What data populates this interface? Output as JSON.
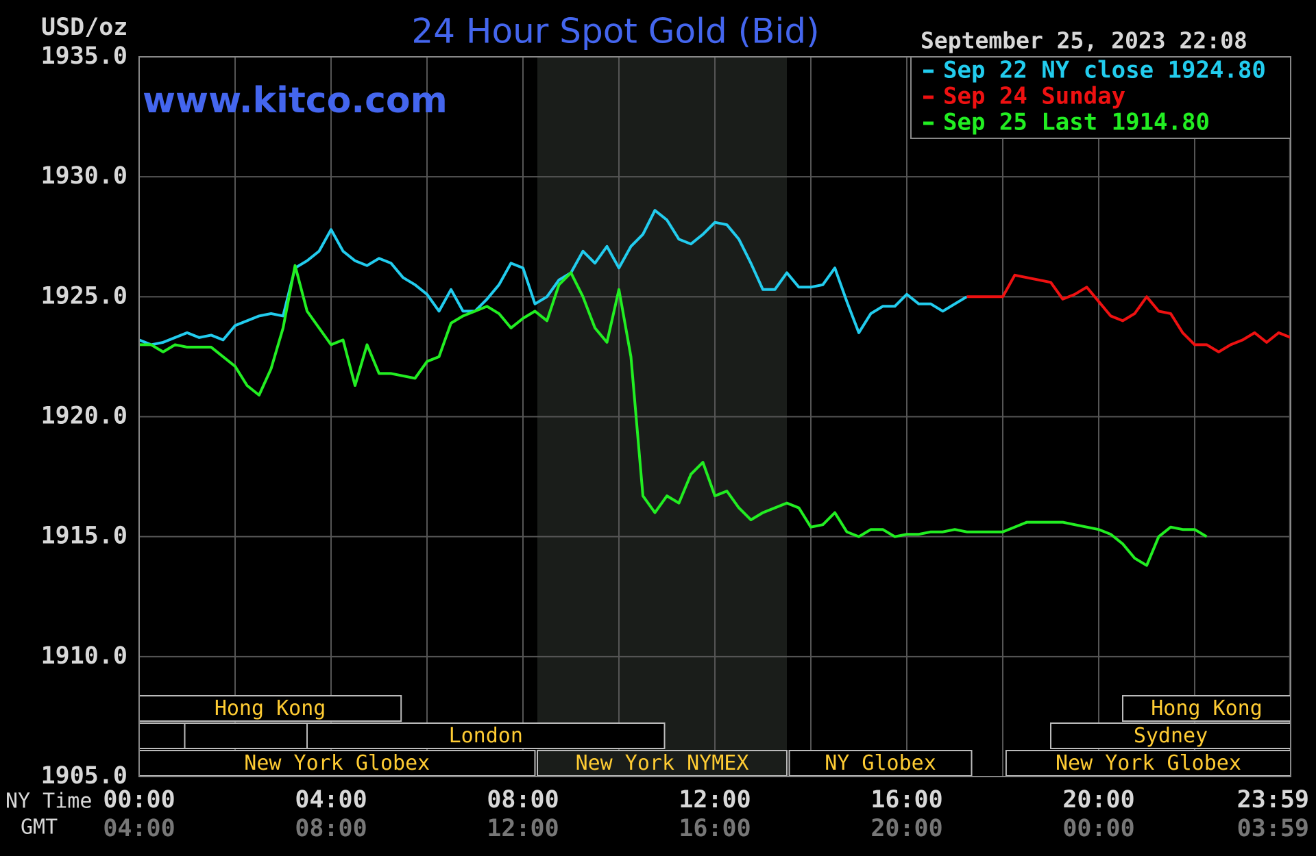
{
  "chart_data": {
    "type": "line",
    "title": "24 Hour Spot Gold (Bid)",
    "subtitle": "www.kitco.com",
    "timestamp": "September 25, 2023 22:08",
    "ylabel": "USD/oz",
    "xlabel": "NY Time",
    "x2label": "GMT",
    "x": [
      0,
      0.25,
      0.5,
      0.75,
      1,
      1.25,
      1.5,
      1.75,
      2,
      2.25,
      2.5,
      2.75,
      3,
      3.25,
      3.5,
      3.75,
      4,
      4.25,
      4.5,
      4.75,
      5,
      5.25,
      5.5,
      5.75,
      6,
      6.25,
      6.5,
      6.75,
      7,
      7.25,
      7.5,
      7.75,
      8,
      8.25,
      8.5,
      8.75,
      9,
      9.25,
      9.5,
      9.75,
      10,
      10.25,
      10.5,
      10.75,
      11,
      11.25,
      11.5,
      11.75,
      12,
      12.25,
      12.5,
      12.75,
      13,
      13.25,
      13.5,
      13.75,
      14,
      14.25,
      14.5,
      14.75,
      15,
      15.25,
      15.5,
      15.75,
      16,
      16.25,
      16.5,
      16.75,
      17,
      17.25,
      17.5,
      17.75,
      18,
      18.25,
      18.5,
      18.75,
      19,
      19.25,
      19.5,
      19.75,
      20,
      20.25,
      20.5,
      20.75,
      21,
      21.25,
      21.5,
      21.75,
      22,
      22.25,
      22.5,
      22.75,
      23,
      23.25,
      23.5,
      23.75,
      24
    ],
    "series": [
      {
        "name": "Sep 22 NY close 1924.80",
        "color": "#22ccee",
        "values": [
          1923.2,
          1923.0,
          1923.1,
          1923.3,
          1923.5,
          1923.3,
          1923.4,
          1923.2,
          1923.8,
          1924.0,
          1924.2,
          1924.3,
          1924.2,
          1926.2,
          1926.5,
          1926.9,
          1927.8,
          1926.9,
          1926.5,
          1926.3,
          1926.6,
          1926.4,
          1925.8,
          1925.5,
          1925.1,
          1924.4,
          1925.3,
          1924.4,
          1924.4,
          1924.9,
          1925.5,
          1926.4,
          1926.2,
          1924.7,
          1925.0,
          1925.7,
          1926.0,
          1926.9,
          1926.4,
          1927.1,
          1926.2,
          1927.1,
          1927.6,
          1928.6,
          1928.2,
          1927.4,
          1927.2,
          1927.6,
          1928.1,
          1928.0,
          1927.4,
          1926.4,
          1925.3,
          1925.3,
          1926.0,
          1925.4,
          1925.4,
          1925.5,
          1926.2,
          1924.8,
          1923.5,
          1924.3,
          1924.6,
          1924.6,
          1925.1,
          1924.7,
          1924.7,
          1924.4,
          1924.7,
          1925.0,
          null,
          null,
          null,
          null,
          null,
          null,
          null,
          null,
          null,
          null,
          null,
          null,
          null,
          null,
          null,
          null,
          null,
          null,
          null,
          null,
          null,
          null,
          null,
          null,
          null,
          null,
          null
        ]
      },
      {
        "name": "Sep 24 Sunday",
        "color": "#ee1111",
        "values": [
          null,
          null,
          null,
          null,
          null,
          null,
          null,
          null,
          null,
          null,
          null,
          null,
          null,
          null,
          null,
          null,
          null,
          null,
          null,
          null,
          null,
          null,
          null,
          null,
          null,
          null,
          null,
          null,
          null,
          null,
          null,
          null,
          null,
          null,
          null,
          null,
          null,
          null,
          null,
          null,
          null,
          null,
          null,
          null,
          null,
          null,
          null,
          null,
          null,
          null,
          null,
          null,
          null,
          null,
          null,
          null,
          null,
          null,
          null,
          null,
          null,
          null,
          null,
          null,
          null,
          null,
          null,
          null,
          null,
          1925.0,
          1925.0,
          1925.0,
          1925.0,
          1925.9,
          1925.8,
          1925.7,
          1925.6,
          1924.9,
          1925.1,
          1925.4,
          1924.8,
          1924.2,
          1924.0,
          1924.3,
          1925.0,
          1924.4,
          1924.3,
          1923.5,
          1923.0,
          1923.0,
          1922.7,
          1923.0,
          1923.2,
          1923.5,
          1923.1,
          1923.5,
          1923.3
        ]
      },
      {
        "name": "Sep 25 Last 1914.80",
        "color": "#22ee22",
        "values": [
          1923.0,
          1923.0,
          1922.7,
          1923.0,
          1922.9,
          1922.9,
          1922.9,
          1922.5,
          1922.1,
          1921.3,
          1920.9,
          1922.0,
          1923.7,
          1926.3,
          1924.4,
          1923.7,
          1923.0,
          1923.2,
          1921.3,
          1923.0,
          1921.8,
          1921.8,
          1921.7,
          1921.6,
          1922.3,
          1922.5,
          1923.9,
          1924.2,
          1924.4,
          1924.6,
          1924.3,
          1923.7,
          1924.1,
          1924.4,
          1924.0,
          1925.5,
          1926.0,
          1925.0,
          1923.7,
          1923.1,
          1925.3,
          1922.5,
          1916.7,
          1916.0,
          1916.7,
          1916.4,
          1917.6,
          1918.1,
          1916.7,
          1916.9,
          1916.2,
          1915.7,
          1916.0,
          1916.2,
          1916.4,
          1916.2,
          1915.4,
          1915.5,
          1916.0,
          1915.2,
          1915.0,
          1915.3,
          1915.3,
          1915.0,
          1915.1,
          1915.1,
          1915.2,
          1915.2,
          1915.3,
          1915.2,
          1915.2,
          1915.2,
          1915.2,
          1915.4,
          1915.6,
          1915.6,
          1915.6,
          1915.6,
          1915.5,
          1915.4,
          1915.3,
          1915.1,
          1914.7,
          1914.1,
          1913.8,
          1915.0,
          1915.4,
          1915.3,
          1915.3,
          1915.0,
          null,
          null,
          null,
          null,
          null,
          null,
          null
        ]
      }
    ],
    "xlim": [
      0,
      24
    ],
    "xticks": [
      {
        "value": 0,
        "label": "00:00"
      },
      {
        "value": 4,
        "label": "04:00"
      },
      {
        "value": 8,
        "label": "08:00"
      },
      {
        "value": 12,
        "label": "12:00"
      },
      {
        "value": 16,
        "label": "16:00"
      },
      {
        "value": 20,
        "label": "20:00"
      },
      {
        "value": 23.983,
        "label": "23:59"
      }
    ],
    "x2ticks": [
      {
        "value": 0,
        "label": "04:00"
      },
      {
        "value": 4,
        "label": "08:00"
      },
      {
        "value": 8,
        "label": "12:00"
      },
      {
        "value": 12,
        "label": "16:00"
      },
      {
        "value": 16,
        "label": "20:00"
      },
      {
        "value": 20,
        "label": "00:00"
      },
      {
        "value": 23.983,
        "label": "03:59"
      }
    ],
    "xminor": [
      2,
      6,
      10,
      14,
      18,
      22
    ],
    "ylim": [
      1905,
      1935
    ],
    "yticks": [
      {
        "value": 1905,
        "label": "1905.0"
      },
      {
        "value": 1910,
        "label": "1910.0"
      },
      {
        "value": 1915,
        "label": "1915.0"
      },
      {
        "value": 1920,
        "label": "1920.0"
      },
      {
        "value": 1925,
        "label": "1925.0"
      },
      {
        "value": 1930,
        "label": "1930.0"
      },
      {
        "value": 1935,
        "label": "1935.0"
      }
    ],
    "grid": true,
    "legend": "upper right",
    "sessions": [
      {
        "label": "Hong Kong",
        "start": 0,
        "end": 5.46
      },
      {
        "label": "Hong Kong",
        "start": 20.5,
        "end": 24
      },
      {
        "label": "London",
        "start": 3.5,
        "end": 10.95
      },
      {
        "label": "Sydney",
        "start": 19,
        "end": 24
      },
      {
        "label": "New York Globex",
        "start": 0,
        "end": 8.25
      },
      {
        "label": "New York NYMEX",
        "start": 8.3,
        "end": 13.5
      },
      {
        "label": "NY Globex",
        "start": 13.55,
        "end": 17.35
      },
      {
        "label": "New York Globex",
        "start": 18.07,
        "end": 24
      }
    ]
  }
}
